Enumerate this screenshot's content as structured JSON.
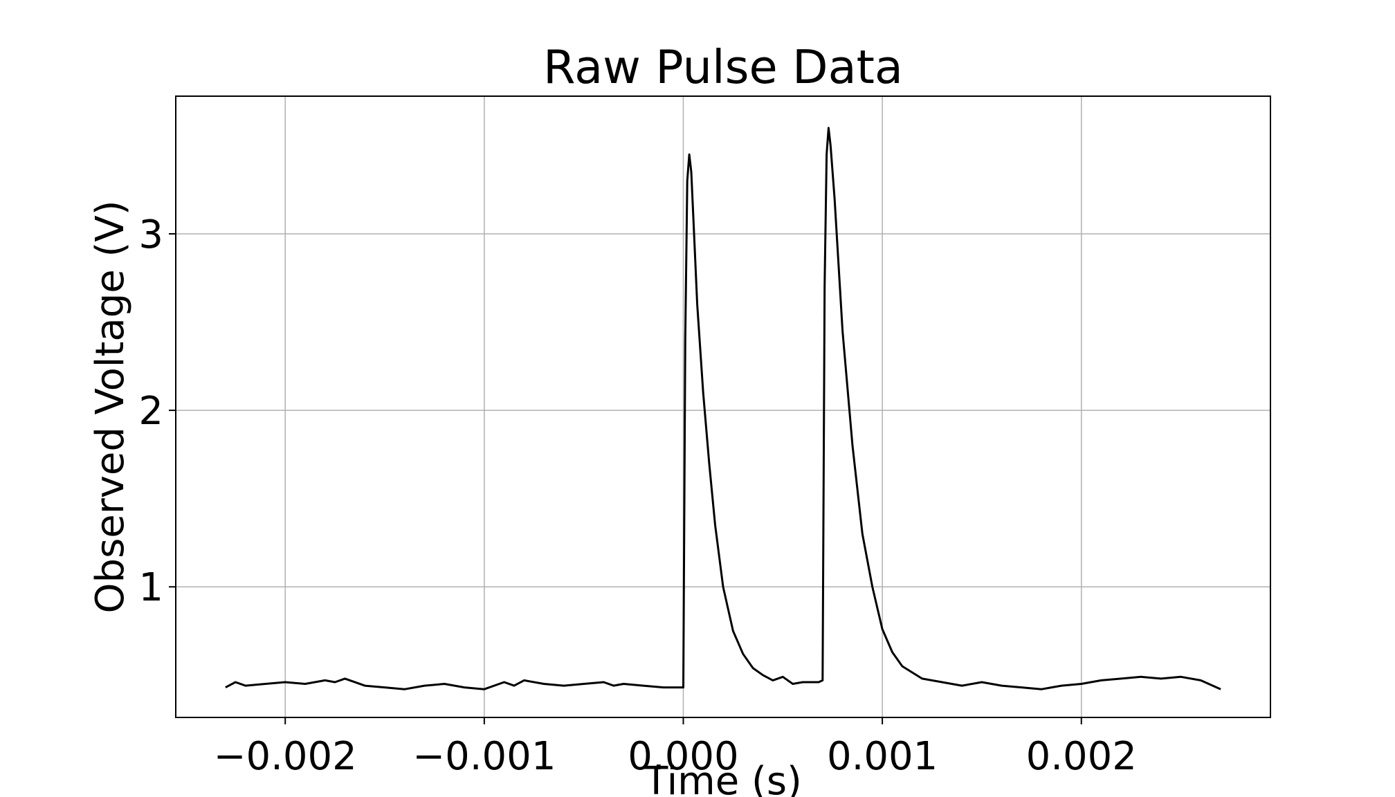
{
  "chart_data": {
    "type": "line",
    "title": "Raw Pulse Data",
    "xlabel": "Time (s)",
    "ylabel": "Observed Voltage (V)",
    "xlim": [
      -0.00255,
      0.00295
    ],
    "ylim": [
      0.26,
      3.78
    ],
    "grid": true,
    "x_ticks": [
      -0.002,
      -0.001,
      0.0,
      0.001,
      0.002
    ],
    "x_tick_labels": [
      "−0.002",
      "−0.001",
      "0.000",
      "0.001",
      "0.002"
    ],
    "y_ticks": [
      1,
      2,
      3
    ],
    "y_tick_labels": [
      "1",
      "2",
      "3"
    ],
    "line_color": "#000000",
    "grid_color": "#b0b0b0",
    "series": [
      {
        "x": [
          -0.0023,
          -0.00225,
          -0.0022,
          -0.0021,
          -0.002,
          -0.0019,
          -0.0018,
          -0.00175,
          -0.0017,
          -0.0016,
          -0.0015,
          -0.0014,
          -0.0013,
          -0.0012,
          -0.0011,
          -0.001,
          -0.0009,
          -0.00085,
          -0.0008,
          -0.0007,
          -0.0006,
          -0.0005,
          -0.0004,
          -0.00035,
          -0.0003,
          -0.0002,
          -0.0001,
          -2e-05,
          0.0,
          1e-05,
          2e-05,
          3e-05,
          4e-05,
          5e-05,
          7e-05,
          0.0001,
          0.00013,
          0.00016,
          0.0002,
          0.00025,
          0.0003,
          0.00035,
          0.0004,
          0.00045,
          0.0005,
          0.00055,
          0.0006,
          0.00068,
          0.0007,
          0.00071,
          0.00072,
          0.00073,
          0.00074,
          0.00076,
          0.0008,
          0.00085,
          0.0009,
          0.00095,
          0.001,
          0.00105,
          0.0011,
          0.0012,
          0.0013,
          0.0014,
          0.0015,
          0.0016,
          0.0017,
          0.0018,
          0.0019,
          0.002,
          0.0021,
          0.0022,
          0.0023,
          0.0024,
          0.0025,
          0.0026,
          0.0027
        ],
        "y": [
          0.43,
          0.46,
          0.44,
          0.45,
          0.46,
          0.45,
          0.47,
          0.46,
          0.48,
          0.44,
          0.43,
          0.42,
          0.44,
          0.45,
          0.43,
          0.42,
          0.46,
          0.44,
          0.47,
          0.45,
          0.44,
          0.45,
          0.46,
          0.44,
          0.45,
          0.44,
          0.43,
          0.43,
          0.43,
          2.4,
          3.3,
          3.45,
          3.35,
          3.1,
          2.6,
          2.1,
          1.7,
          1.35,
          1.0,
          0.75,
          0.62,
          0.54,
          0.5,
          0.47,
          0.49,
          0.45,
          0.46,
          0.46,
          0.47,
          2.7,
          3.45,
          3.6,
          3.5,
          3.2,
          2.45,
          1.8,
          1.3,
          1.0,
          0.76,
          0.63,
          0.55,
          0.48,
          0.46,
          0.44,
          0.46,
          0.44,
          0.43,
          0.42,
          0.44,
          0.45,
          0.47,
          0.48,
          0.49,
          0.48,
          0.49,
          0.47,
          0.42
        ]
      }
    ]
  }
}
